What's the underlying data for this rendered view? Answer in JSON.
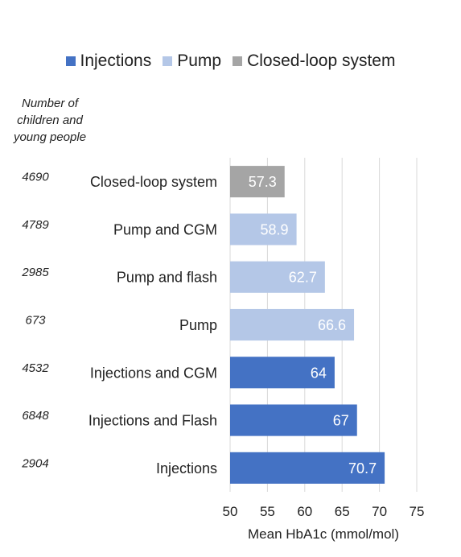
{
  "legend": [
    {
      "label": "Injections",
      "color": "#4472C4"
    },
    {
      "label": "Pump",
      "color": "#B4C7E7"
    },
    {
      "label": "Closed-loop system",
      "color": "#A5A5A5"
    }
  ],
  "count_header": "Number of children and young people",
  "chart_data": {
    "type": "bar",
    "orientation": "horizontal",
    "categories": [
      "Closed-loop system",
      "Pump and CGM",
      "Pump and flash",
      "Pump",
      "Injections and CGM",
      "Injections and Flash",
      "Injections"
    ],
    "values": [
      57.3,
      58.9,
      62.7,
      66.6,
      64,
      67,
      70.7
    ],
    "value_labels": [
      "57.3",
      "58.9",
      "62.7",
      "66.6",
      "64",
      "67",
      "70.7"
    ],
    "counts": [
      "4690",
      "4789",
      "2985",
      "673",
      "4532",
      "6848",
      "2904"
    ],
    "groups": [
      "Closed-loop system",
      "Pump",
      "Pump",
      "Pump",
      "Injections",
      "Injections",
      "Injections"
    ],
    "xlabel": "Mean HbA1c (mmol/mol)",
    "xlim": [
      50,
      75
    ],
    "xticks": [
      "50",
      "55",
      "60",
      "65",
      "70",
      "75"
    ],
    "grid": true,
    "legend_position": "top"
  }
}
